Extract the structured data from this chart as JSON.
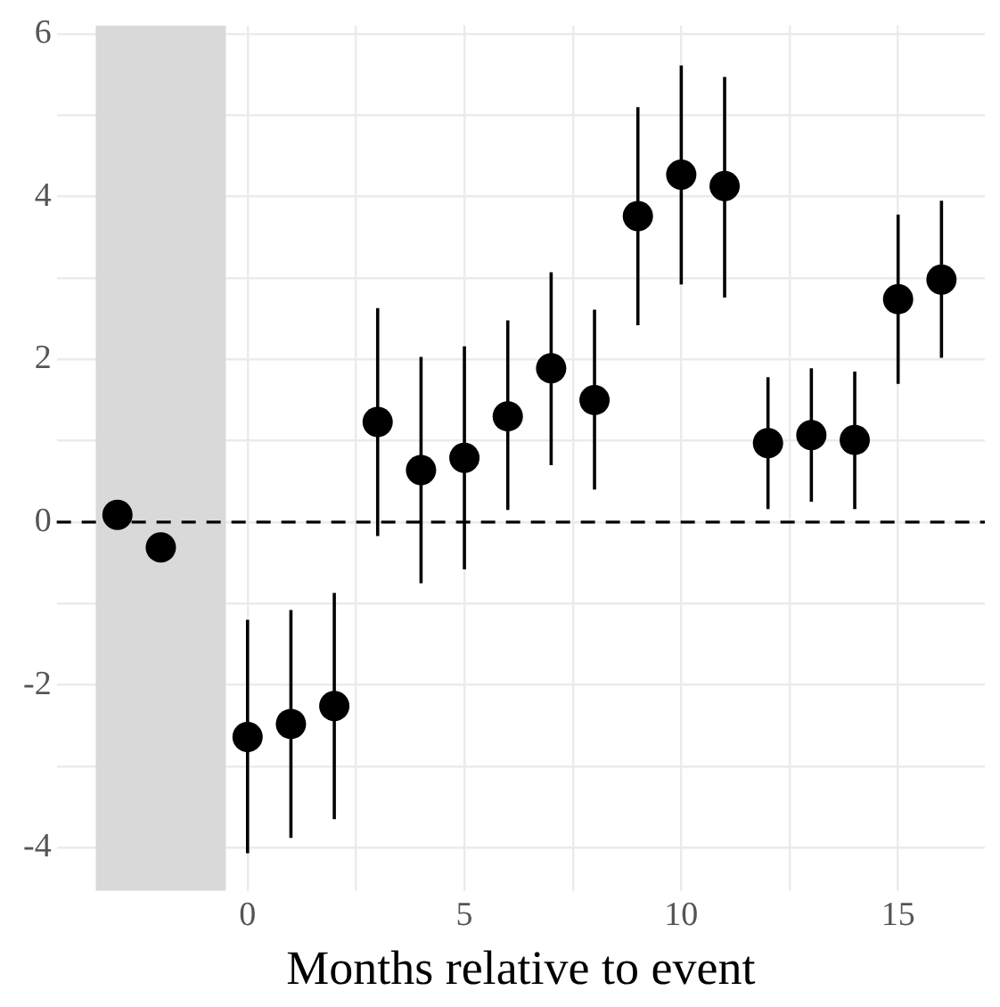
{
  "chart_data": {
    "type": "scatter",
    "xlabel": "Months relative to event",
    "x": [
      -3,
      -2,
      0,
      1,
      2,
      3,
      4,
      5,
      6,
      7,
      8,
      9,
      10,
      11,
      12,
      13,
      14,
      15,
      16
    ],
    "series": [
      {
        "color": "#000000",
        "values": [
          0.09,
          -0.31,
          -2.64,
          -2.48,
          -2.26,
          1.23,
          0.64,
          0.79,
          1.3,
          1.89,
          1.5,
          3.76,
          4.27,
          4.13,
          0.97,
          1.07,
          1.01,
          2.74,
          2.98
        ],
        "errors": [
          null,
          null,
          [
            -4.07,
            -1.2
          ],
          [
            -3.88,
            -1.08
          ],
          [
            -3.65,
            -0.87
          ],
          [
            -0.17,
            2.63
          ],
          [
            -0.75,
            2.03
          ],
          [
            -0.58,
            2.16
          ],
          [
            0.15,
            2.48
          ],
          [
            0.7,
            3.07
          ],
          [
            0.4,
            2.61
          ],
          [
            2.42,
            5.1
          ],
          [
            2.92,
            5.61
          ],
          [
            2.76,
            5.47
          ],
          [
            0.16,
            1.78
          ],
          [
            0.25,
            1.89
          ],
          [
            0.16,
            1.85
          ],
          [
            1.7,
            3.78
          ],
          [
            2.02,
            3.95
          ]
        ]
      }
    ],
    "xlim": [
      -4.4,
      17
    ],
    "ylim": [
      -4.53,
      6.1
    ],
    "xticks": [
      0,
      {
        "value": 2.5,
        "label": null
      },
      5,
      {
        "value": 7.5,
        "label": null
      },
      10,
      {
        "value": 12.5,
        "label": null
      },
      15
    ],
    "yticks": [
      -4,
      {
        "value": -3,
        "label": null
      },
      -2,
      {
        "value": -1,
        "label": null
      },
      0,
      {
        "value": 1,
        "label": null
      },
      2,
      {
        "value": 3,
        "label": null
      },
      4,
      {
        "value": 5,
        "label": null
      },
      6
    ],
    "grid": true,
    "marker": "circle",
    "legend": false,
    "ref_lines": [
      {
        "axis": "y",
        "value": 0,
        "color": "#000000",
        "line_style": "dashed"
      }
    ],
    "bands": [
      {
        "axis": "x",
        "from": -3.5,
        "to": -0.5,
        "color": "#d9d9d9"
      }
    ]
  }
}
